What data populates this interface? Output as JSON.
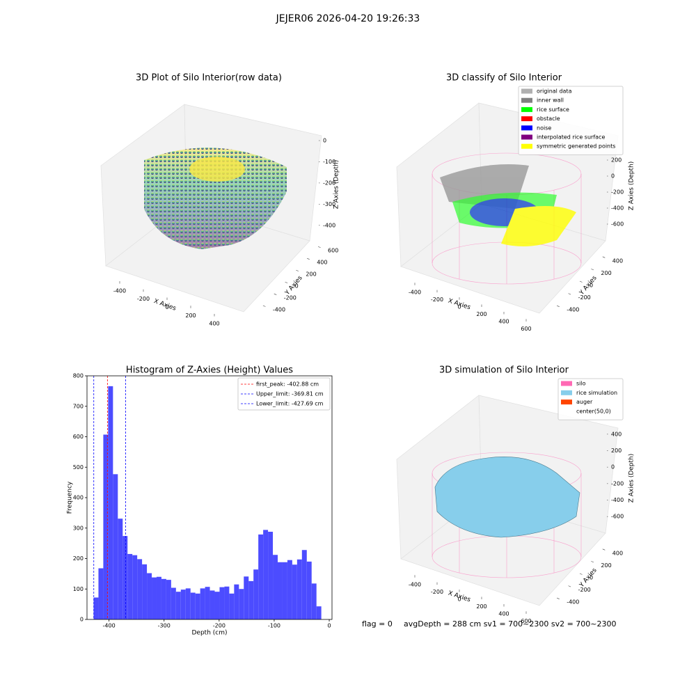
{
  "title": "JEJER06 2026-04-20 19:26:33",
  "footer": [
    "flag = 0",
    "avgDepth = 288 cm  sv1 = 700~2300  sv2 = 700~2300"
  ],
  "chart_data": [
    {
      "type": "scatter3d",
      "title": "3D Plot of Silo Interior(row data)",
      "xlabel": "X Axies",
      "ylabel": "Y Axies",
      "zlabel": "Z Axies (Depth)",
      "xlim": [
        -450,
        450
      ],
      "ylim": [
        -500,
        650
      ],
      "zlim": [
        -450,
        0
      ],
      "xticks": [
        -400,
        -200,
        0,
        200,
        400
      ],
      "yticks": [
        -400,
        -200,
        0,
        200,
        400,
        600
      ],
      "zticks": [
        0,
        -100,
        -200,
        -300,
        -400
      ]
    },
    {
      "type": "scatter3d",
      "title": "3D classify of Silo Interior",
      "xlabel": "X Axies",
      "ylabel": "Y Axies",
      "zlabel": "Z Axies (Depth)",
      "xlim": [
        -500,
        650
      ],
      "ylim": [
        -500,
        500
      ],
      "zlim": [
        -700,
        300
      ],
      "xticks": [
        -400,
        -200,
        0,
        200,
        400,
        600
      ],
      "yticks": [
        -400,
        -200,
        0,
        200,
        400
      ],
      "zticks": [
        200,
        0,
        -200,
        -400,
        -600
      ],
      "legend": [
        {
          "name": "original data",
          "color": "#b0b0b0"
        },
        {
          "name": "inner wall",
          "color": "#808080"
        },
        {
          "name": "rice surface",
          "color": "#00ff00"
        },
        {
          "name": "obstacle",
          "color": "#ff0000"
        },
        {
          "name": "noise",
          "color": "#0000ff"
        },
        {
          "name": "interpolated rice surface",
          "color": "#800080"
        },
        {
          "name": "symmetric generated points",
          "color": "#ffff00"
        }
      ]
    },
    {
      "type": "histogram",
      "title": "Histogram of Z-Axies (Height) Values",
      "xlabel": "Depth (cm)",
      "ylabel": "Frequency",
      "color": "#4c4cff",
      "bins": [
        -428.0,
        -419.2,
        -410.4,
        -401.6,
        -392.8,
        -384.0,
        -375.2,
        -366.4,
        -357.6,
        -348.8,
        -340.0,
        -331.2,
        -322.4,
        -313.6,
        -304.8,
        -296.0,
        -287.2,
        -278.4,
        -269.6,
        -260.8,
        -252.0,
        -243.2,
        -234.4,
        -225.6,
        -216.8,
        -208.0,
        -199.2,
        -190.4,
        -181.6,
        -172.8,
        -164.0,
        -155.2,
        -146.4,
        -137.6,
        -128.8,
        -120.0,
        -111.2,
        -102.4,
        -93.6,
        -84.8,
        -76.0,
        -67.2,
        -58.4,
        -49.6,
        -40.8,
        -32.0,
        -23.2,
        -14.4
      ],
      "values": [
        72,
        168,
        607,
        766,
        477,
        331,
        274,
        215,
        211,
        198,
        181,
        152,
        138,
        140,
        133,
        130,
        104,
        91,
        98,
        102,
        88,
        85,
        102,
        107,
        95,
        91,
        106,
        108,
        85,
        115,
        100,
        141,
        126,
        164,
        279,
        294,
        288,
        212,
        188,
        188,
        195,
        180,
        197,
        228,
        190,
        118,
        43
      ],
      "xlim": [
        -440,
        5
      ],
      "ylim": [
        0,
        800
      ],
      "xticks": [
        -400,
        -300,
        -200,
        -100,
        0
      ],
      "yticks": [
        0,
        100,
        200,
        300,
        400,
        500,
        600,
        700,
        800
      ],
      "vlines": [
        {
          "name": "first_peak: -402.88 cm",
          "value": -402.88,
          "color": "#ff0000"
        },
        {
          "name": "Upper_limit: -369.81 cm",
          "value": -369.81,
          "color": "#0000ff"
        },
        {
          "name": "Lower_limit: -427.69 cm",
          "value": -427.69,
          "color": "#0000ff"
        }
      ]
    },
    {
      "type": "scatter3d",
      "title": "3D simulation of Silo Interior",
      "xlabel": "X Axies",
      "ylabel": "Y Axies",
      "zlabel": "Z Axies (Depth)",
      "xlim": [
        -500,
        650
      ],
      "ylim": [
        -500,
        500
      ],
      "zlim": [
        -700,
        500
      ],
      "xticks": [
        -400,
        -200,
        0,
        200,
        400,
        600
      ],
      "yticks": [
        -400,
        -200,
        0,
        200,
        400
      ],
      "zticks": [
        400,
        200,
        0,
        -200,
        -400,
        -600
      ],
      "legend": [
        {
          "name": "silo",
          "color": "#ff69b4"
        },
        {
          "name": "rice simulation",
          "color": "#87ceeb"
        },
        {
          "name": "auger",
          "color": "#ff4500"
        },
        {
          "name": "center(50,0)",
          "color": "#ffffff"
        }
      ]
    }
  ]
}
